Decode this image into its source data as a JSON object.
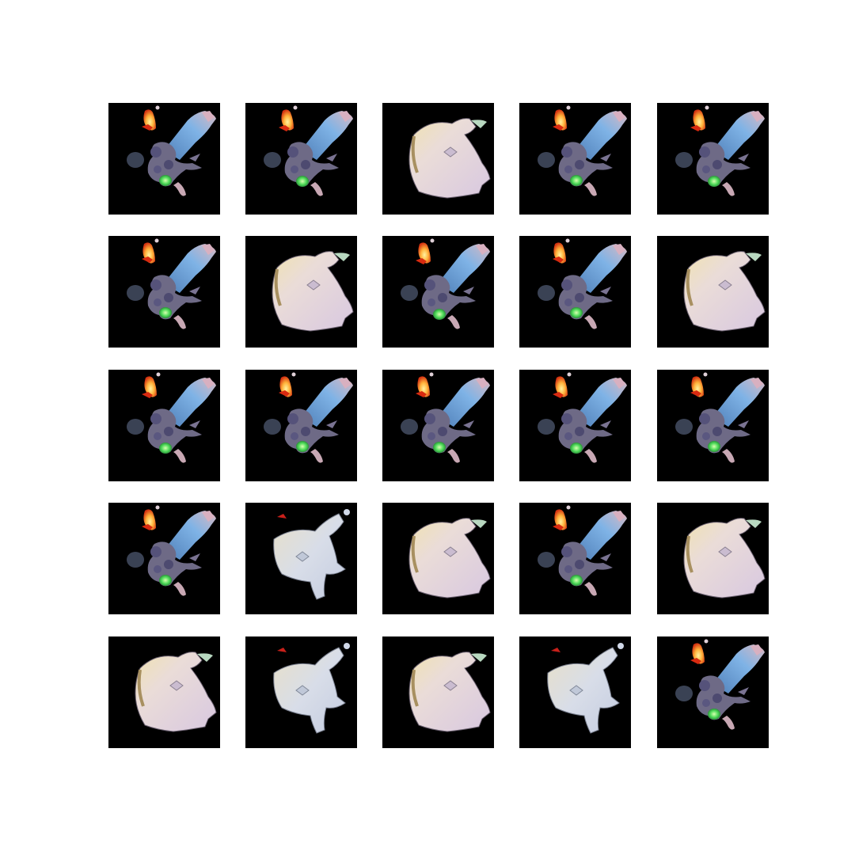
{
  "figure": {
    "background": "#ffffff",
    "tile_background": "#000000",
    "rows": 5,
    "cols": 5
  },
  "samples": [
    [
      "creature",
      "creature",
      "blob",
      "creature",
      "creature"
    ],
    [
      "creature",
      "blob",
      "creature",
      "creature",
      "blob"
    ],
    [
      "creature",
      "creature",
      "creature",
      "creature",
      "creature"
    ],
    [
      "creature",
      "blob-variant",
      "blob",
      "creature",
      "blob"
    ],
    [
      "blob",
      "blob-variant",
      "blob",
      "blob-variant",
      "creature"
    ]
  ]
}
